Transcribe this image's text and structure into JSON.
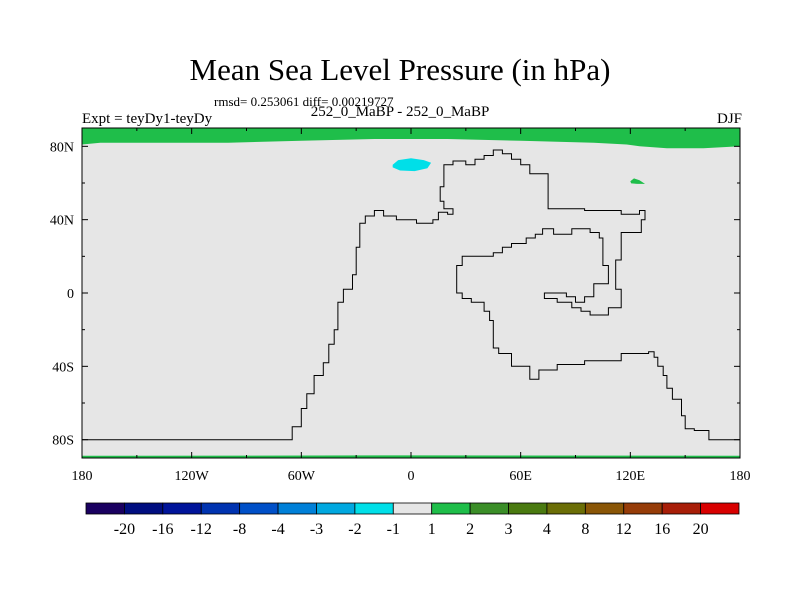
{
  "chart_data": {
    "type": "heatmap",
    "title": "Mean Sea Level Pressure (in hPa)",
    "stats_text": "rmsd= 0.253061 diff= 0.00219727",
    "left_label": "Expt = teyDy1-teyDy",
    "center_label": "252_0_MaBP - 252_0_MaBP",
    "right_label": "DJF",
    "xlim": [
      -180,
      180
    ],
    "ylim": [
      -90,
      90
    ],
    "x_ticks": [
      {
        "value": -180,
        "label": "180"
      },
      {
        "value": -120,
        "label": "120W"
      },
      {
        "value": -60,
        "label": "60W"
      },
      {
        "value": 0,
        "label": "0"
      },
      {
        "value": 60,
        "label": "60E"
      },
      {
        "value": 120,
        "label": "120E"
      },
      {
        "value": 180,
        "label": "180"
      }
    ],
    "y_ticks": [
      {
        "value": 80,
        "label": "80N"
      },
      {
        "value": 40,
        "label": "40N"
      },
      {
        "value": 0,
        "label": "0"
      },
      {
        "value": -40,
        "label": "40S"
      },
      {
        "value": -80,
        "label": "80S"
      }
    ],
    "background_color": "#e6e6e6",
    "regions": [
      {
        "name": "arctic-band",
        "level": "1 to 2",
        "color": "#1fbe4a",
        "points": [
          [
            -180,
            90
          ],
          [
            180,
            90
          ],
          [
            180,
            80
          ],
          [
            160,
            79
          ],
          [
            140,
            79
          ],
          [
            125,
            80
          ],
          [
            118,
            81
          ],
          [
            100,
            82
          ],
          [
            60,
            83
          ],
          [
            20,
            84
          ],
          [
            -20,
            84
          ],
          [
            -60,
            83
          ],
          [
            -100,
            82
          ],
          [
            -140,
            82
          ],
          [
            -170,
            82
          ],
          [
            -180,
            81
          ]
        ]
      },
      {
        "name": "north-atlantic-low",
        "level": "-2 to -1",
        "color": "#00dfe8",
        "points": [
          [
            -10,
            70
          ],
          [
            -7,
            72.5
          ],
          [
            0,
            73.5
          ],
          [
            7,
            72.5
          ],
          [
            11,
            71
          ],
          [
            9,
            68
          ],
          [
            2,
            66.5
          ],
          [
            -6,
            66.8
          ],
          [
            -10,
            68.5
          ]
        ]
      },
      {
        "name": "east-asia-spot",
        "level": "1 to 2",
        "color": "#1fbe4a",
        "points": [
          [
            120,
            61
          ],
          [
            122,
            62.5
          ],
          [
            125,
            61.5
          ],
          [
            128,
            59.5
          ],
          [
            124,
            59.5
          ],
          [
            120.5,
            59.8
          ]
        ]
      },
      {
        "name": "antarctic-edge",
        "level": "1 to 2",
        "color": "#1fbe4a",
        "points": [
          [
            -180,
            -90
          ],
          [
            180,
            -90
          ],
          [
            180,
            -88.8
          ],
          [
            0,
            -88.6
          ],
          [
            -180,
            -88.8
          ]
        ]
      }
    ],
    "coastlines": [
      [
        [
          -180,
          -80
        ],
        [
          -65,
          -80
        ],
        [
          -65,
          -73
        ],
        [
          -60,
          -73
        ],
        [
          -60,
          -63
        ],
        [
          -57,
          -63
        ],
        [
          -57,
          -55
        ],
        [
          -53,
          -55
        ],
        [
          -53,
          -45
        ],
        [
          -48,
          -45
        ],
        [
          -48,
          -38
        ],
        [
          -45,
          -38
        ],
        [
          -45,
          -28
        ],
        [
          -42,
          -28
        ],
        [
          -42,
          -20
        ],
        [
          -40,
          -20
        ],
        [
          -40,
          -5
        ],
        [
          -37,
          -5
        ],
        [
          -37,
          2
        ],
        [
          -32,
          2
        ],
        [
          -32,
          10
        ],
        [
          -30,
          10
        ],
        [
          -30,
          25
        ],
        [
          -28,
          25
        ],
        [
          -28,
          38
        ],
        [
          -25,
          38
        ],
        [
          -25,
          42
        ],
        [
          -20,
          42
        ],
        [
          -20,
          45
        ],
        [
          -15,
          45
        ],
        [
          -15,
          42
        ],
        [
          -8,
          42
        ],
        [
          -8,
          40
        ],
        [
          3,
          40
        ],
        [
          3,
          38
        ],
        [
          12,
          38
        ],
        [
          12,
          40
        ],
        [
          15,
          40
        ],
        [
          15,
          44
        ],
        [
          20,
          44
        ],
        [
          20,
          43
        ],
        [
          23,
          43
        ],
        [
          23,
          46
        ],
        [
          18,
          46
        ],
        [
          18,
          50
        ],
        [
          16,
          50
        ],
        [
          16,
          58
        ],
        [
          18,
          58
        ],
        [
          18,
          70
        ],
        [
          23,
          70
        ],
        [
          23,
          72
        ],
        [
          30,
          72
        ],
        [
          30,
          70
        ],
        [
          35,
          70
        ],
        [
          35,
          73
        ],
        [
          40,
          73
        ],
        [
          40,
          75
        ],
        [
          45,
          75
        ],
        [
          45,
          78
        ],
        [
          50,
          78
        ],
        [
          50,
          76
        ],
        [
          55,
          76
        ],
        [
          55,
          73
        ],
        [
          60,
          73
        ],
        [
          60,
          70
        ],
        [
          65,
          70
        ],
        [
          65,
          65
        ],
        [
          75,
          65
        ],
        [
          75,
          46
        ],
        [
          95,
          46
        ],
        [
          95,
          45
        ],
        [
          115,
          45
        ],
        [
          115,
          43
        ],
        [
          125,
          43
        ],
        [
          125,
          45
        ],
        [
          128,
          45
        ],
        [
          128,
          40
        ],
        [
          126,
          40
        ],
        [
          126,
          33
        ],
        [
          115,
          33
        ],
        [
          115,
          18
        ],
        [
          112,
          18
        ],
        [
          112,
          2
        ],
        [
          115,
          2
        ],
        [
          115,
          -8
        ],
        [
          108,
          -8
        ],
        [
          108,
          -12
        ],
        [
          98,
          -12
        ],
        [
          98,
          -10
        ],
        [
          93,
          -10
        ],
        [
          93,
          -8
        ],
        [
          88,
          -8
        ],
        [
          88,
          -5
        ],
        [
          80,
          -5
        ],
        [
          80,
          -3
        ],
        [
          73,
          -3
        ],
        [
          73,
          0
        ],
        [
          85,
          0
        ],
        [
          85,
          -2
        ],
        [
          90,
          -2
        ],
        [
          90,
          -5
        ],
        [
          95,
          -5
        ],
        [
          95,
          -2
        ],
        [
          100,
          -2
        ],
        [
          100,
          5
        ],
        [
          108,
          5
        ],
        [
          108,
          15
        ],
        [
          105,
          15
        ],
        [
          105,
          30
        ],
        [
          103,
          30
        ],
        [
          103,
          33
        ],
        [
          98,
          33
        ],
        [
          98,
          35
        ],
        [
          88,
          35
        ],
        [
          88,
          32
        ],
        [
          78,
          32
        ],
        [
          78,
          35
        ],
        [
          72,
          35
        ],
        [
          72,
          32
        ],
        [
          68,
          32
        ],
        [
          68,
          30
        ],
        [
          63,
          30
        ],
        [
          63,
          27
        ],
        [
          55,
          27
        ],
        [
          55,
          25
        ],
        [
          50,
          25
        ],
        [
          50,
          22
        ],
        [
          45,
          22
        ],
        [
          45,
          20
        ],
        [
          28,
          20
        ],
        [
          28,
          15
        ],
        [
          25,
          15
        ],
        [
          25,
          0
        ],
        [
          28,
          0
        ],
        [
          28,
          -3
        ],
        [
          33,
          -3
        ],
        [
          33,
          -5
        ],
        [
          40,
          -5
        ],
        [
          40,
          -10
        ],
        [
          43,
          -10
        ],
        [
          43,
          -15
        ],
        [
          45,
          -15
        ],
        [
          45,
          -30
        ],
        [
          48,
          -30
        ],
        [
          48,
          -33
        ],
        [
          55,
          -33
        ],
        [
          55,
          -40
        ],
        [
          65,
          -40
        ],
        [
          65,
          -47
        ],
        [
          70,
          -47
        ],
        [
          70,
          -42
        ],
        [
          80,
          -42
        ],
        [
          80,
          -39
        ],
        [
          95,
          -39
        ],
        [
          95,
          -37
        ],
        [
          115,
          -37
        ],
        [
          115,
          -33
        ],
        [
          130,
          -33
        ],
        [
          130,
          -32
        ],
        [
          133,
          -32
        ],
        [
          133,
          -35
        ],
        [
          135,
          -35
        ],
        [
          135,
          -40
        ],
        [
          138,
          -40
        ],
        [
          138,
          -45
        ],
        [
          140,
          -45
        ],
        [
          140,
          -52
        ],
        [
          143,
          -52
        ],
        [
          143,
          -58
        ],
        [
          148,
          -58
        ],
        [
          148,
          -67
        ],
        [
          150,
          -67
        ],
        [
          150,
          -74
        ],
        [
          155,
          -74
        ],
        [
          155,
          -75
        ],
        [
          163,
          -75
        ],
        [
          163,
          -80
        ],
        [
          180,
          -80
        ]
      ]
    ],
    "colorbar": {
      "levels": [
        "-20",
        "-16",
        "-12",
        "-8",
        "-4",
        "-3",
        "-2",
        "-1",
        "1",
        "2",
        "3",
        "4",
        "8",
        "12",
        "16",
        "20"
      ],
      "colors": [
        "#1a0060",
        "#000e80",
        "#00149a",
        "#0033b0",
        "#0050c8",
        "#0080d8",
        "#00a8e0",
        "#00dfe8",
        "#e6e6e6",
        "#1fbe4a",
        "#3b8e28",
        "#4a7a10",
        "#6b6e06",
        "#8a5606",
        "#963c08",
        "#a81e08",
        "#d80000"
      ]
    }
  }
}
